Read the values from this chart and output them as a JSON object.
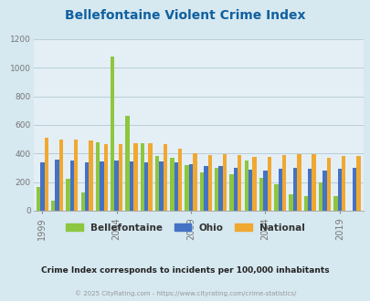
{
  "title": "Bellefontaine Violent Crime Index",
  "title_color": "#1060a0",
  "subtitle": "Crime Index corresponds to incidents per 100,000 inhabitants",
  "footer": "© 2025 CityRating.com - https://www.cityrating.com/crime-statistics/",
  "years": [
    1999,
    2000,
    2001,
    2002,
    2003,
    2004,
    2005,
    2006,
    2007,
    2008,
    2009,
    2010,
    2011,
    2012,
    2013,
    2014,
    2015,
    2016,
    2017,
    2018,
    2019,
    2020
  ],
  "bellefontaine": [
    165,
    70,
    225,
    130,
    480,
    1075,
    665,
    470,
    380,
    370,
    320,
    270,
    300,
    255,
    350,
    230,
    185,
    115,
    100,
    200,
    100,
    0
  ],
  "ohio": [
    335,
    360,
    350,
    335,
    345,
    350,
    345,
    335,
    345,
    335,
    325,
    310,
    315,
    300,
    285,
    280,
    295,
    300,
    295,
    280,
    295,
    300
  ],
  "national": [
    510,
    500,
    500,
    490,
    465,
    465,
    475,
    470,
    465,
    435,
    405,
    390,
    395,
    390,
    375,
    375,
    390,
    395,
    395,
    370,
    380,
    380
  ],
  "bellefontaine_color": "#8dc63f",
  "ohio_color": "#4472c4",
  "national_color": "#f0a830",
  "bg_color": "#d6e8f0",
  "plot_bg_color": "#e4eff5",
  "ylim": [
    0,
    1200
  ],
  "yticks": [
    0,
    200,
    400,
    600,
    800,
    1000,
    1200
  ],
  "tick_years": [
    1999,
    2004,
    2009,
    2014,
    2019
  ],
  "xlabel_color": "#777777",
  "grid_color": "#b8cdd8",
  "legend_labels": [
    "Bellefontaine",
    "Ohio",
    "National"
  ],
  "subtitle_color": "#222222",
  "footer_color": "#999999"
}
